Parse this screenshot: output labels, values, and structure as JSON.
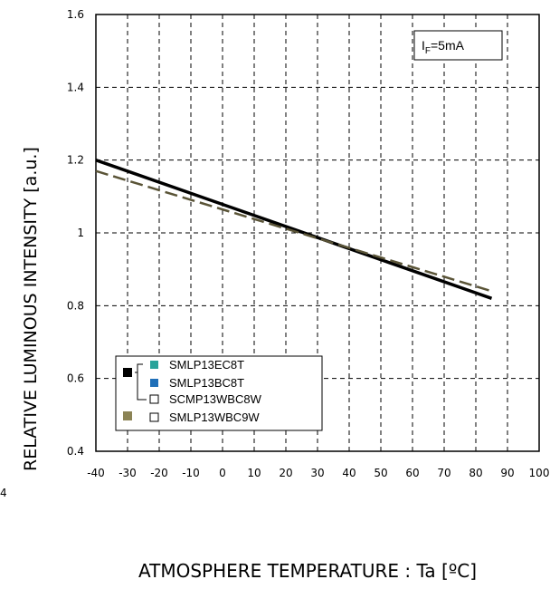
{
  "chart_data": {
    "type": "line",
    "ylabel": "RELATIVE LUMINOUS INTENSITY [a.u.]",
    "xlabel": "ATMOSPHERE TEMPERATURE : Ta [ºC]",
    "xlim": [
      -40,
      100
    ],
    "ylim": [
      0.4,
      1.6
    ],
    "x_ticks": [
      "-40",
      "-30",
      "-20",
      "-10",
      "0",
      "10",
      "20",
      "30",
      "40",
      "50",
      "60",
      "70",
      "80",
      "90",
      "100"
    ],
    "y_ticks": [
      "0.4",
      "0.6",
      "0.8",
      "1",
      "1.2",
      "1.4",
      "1.6"
    ],
    "grid": true,
    "annotation": {
      "main": "I",
      "sub": "F",
      "rest": "=5mA"
    },
    "legend": {
      "placement": "bottom-left",
      "entries": [
        "SMLP13EC8T",
        "SMLP13BC8T",
        "SCMP13WBC8W",
        "SMLP13WBC9W"
      ],
      "marker_colors": [
        "#2aa39a",
        "#1f6fb8",
        "#ffffff",
        "#ffffff"
      ],
      "group_colors": [
        "#000000",
        "#8b8355"
      ]
    },
    "series": [
      {
        "color": "#000000",
        "style": "solid",
        "x": [
          -40,
          85
        ],
        "y": [
          1.2,
          0.82
        ]
      },
      {
        "color": "#5a5437",
        "style": "dashed",
        "x": [
          -40,
          85
        ],
        "y": [
          1.17,
          0.84
        ]
      }
    ],
    "colors": {
      "series1": "#000000",
      "series2": "#5a5437"
    }
  },
  "corner_note": "4"
}
